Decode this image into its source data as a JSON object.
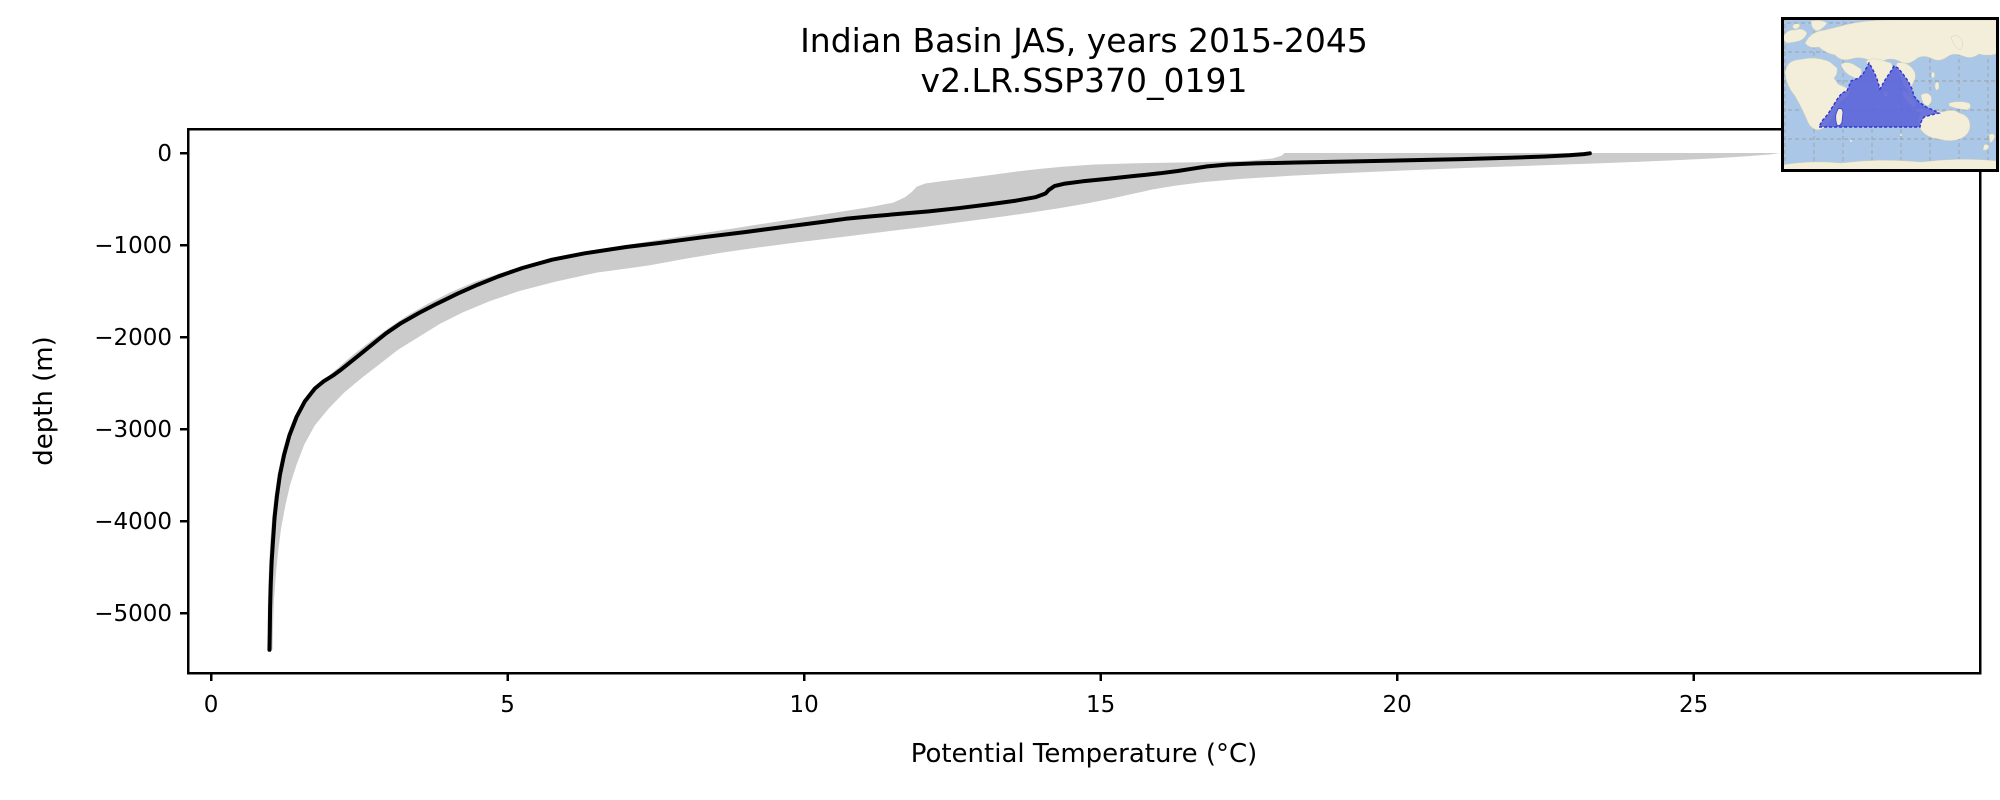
{
  "figure": {
    "title_line1": "Indian Basin JAS, years 2015-2045",
    "title_line2": "v2.LR.SSP370_0191",
    "background": "#ffffff"
  },
  "chart_data": {
    "type": "line",
    "title": "Indian Basin JAS, years 2015-2045",
    "subtitle": "v2.LR.SSP370_0191",
    "xlabel": "Potential Temperature (°C)",
    "ylabel": "depth (m)",
    "xlim": [
      -0.39,
      29.83
    ],
    "ylim": [
      -5652,
      261
    ],
    "grid": false,
    "legend": "none",
    "x_ticks": {
      "values": [
        0,
        5,
        10,
        15,
        20,
        25
      ],
      "labels": [
        "0",
        "5",
        "10",
        "15",
        "20",
        "25"
      ]
    },
    "y_ticks": {
      "values": [
        0,
        -1000,
        -2000,
        -3000,
        -4000,
        -5000
      ],
      "labels": [
        "0",
        "−1000",
        "−2000",
        "−3000",
        "−4000",
        "−5000"
      ]
    },
    "series": [
      {
        "name": "mean potential temperature profile",
        "color": "#000000",
        "points": [
          [
            23.25,
            -3
          ],
          [
            23.15,
            -12
          ],
          [
            22.9,
            -25
          ],
          [
            22.5,
            -38
          ],
          [
            21.9,
            -52
          ],
          [
            21.1,
            -66
          ],
          [
            20.2,
            -79
          ],
          [
            19.2,
            -92
          ],
          [
            18.3,
            -103
          ],
          [
            17.6,
            -113
          ],
          [
            17.15,
            -125
          ],
          [
            16.8,
            -145
          ],
          [
            16.55,
            -170
          ],
          [
            16.3,
            -195
          ],
          [
            16.0,
            -220
          ],
          [
            15.6,
            -248
          ],
          [
            15.15,
            -278
          ],
          [
            14.7,
            -308
          ],
          [
            14.4,
            -332
          ],
          [
            14.22,
            -360
          ],
          [
            14.13,
            -400
          ],
          [
            14.07,
            -440
          ],
          [
            13.9,
            -480
          ],
          [
            13.55,
            -520
          ],
          [
            13.1,
            -560
          ],
          [
            12.6,
            -600
          ],
          [
            12.1,
            -635
          ],
          [
            11.6,
            -662
          ],
          [
            11.15,
            -688
          ],
          [
            10.7,
            -715
          ],
          [
            10.35,
            -745
          ],
          [
            9.7,
            -800
          ],
          [
            9.0,
            -860
          ],
          [
            8.3,
            -915
          ],
          [
            7.6,
            -975
          ],
          [
            7.0,
            -1022
          ],
          [
            6.3,
            -1090
          ],
          [
            5.75,
            -1160
          ],
          [
            5.25,
            -1250
          ],
          [
            4.85,
            -1340
          ],
          [
            4.5,
            -1430
          ],
          [
            4.15,
            -1530
          ],
          [
            3.8,
            -1640
          ],
          [
            3.5,
            -1740
          ],
          [
            3.2,
            -1850
          ],
          [
            2.95,
            -1960
          ],
          [
            2.7,
            -2090
          ],
          [
            2.45,
            -2220
          ],
          [
            2.2,
            -2350
          ],
          [
            2.05,
            -2420
          ],
          [
            1.9,
            -2480
          ],
          [
            1.75,
            -2560
          ],
          [
            1.58,
            -2700
          ],
          [
            1.44,
            -2870
          ],
          [
            1.32,
            -3070
          ],
          [
            1.23,
            -3280
          ],
          [
            1.16,
            -3500
          ],
          [
            1.11,
            -3730
          ],
          [
            1.07,
            -3960
          ],
          [
            1.045,
            -4200
          ],
          [
            1.02,
            -4450
          ],
          [
            1.005,
            -4700
          ],
          [
            0.995,
            -4950
          ],
          [
            0.99,
            -5200
          ],
          [
            0.985,
            -5400
          ]
        ]
      }
    ],
    "band": {
      "name": "min-max envelope across ensemble",
      "color": "#cbcbcb",
      "min_points": [
        [
          18.1,
          0
        ],
        [
          18.05,
          -30
        ],
        [
          17.9,
          -60
        ],
        [
          17.5,
          -85
        ],
        [
          16.6,
          -100
        ],
        [
          15.6,
          -112
        ],
        [
          14.9,
          -125
        ],
        [
          14.35,
          -150
        ],
        [
          14.0,
          -170
        ],
        [
          13.6,
          -200
        ],
        [
          13.2,
          -235
        ],
        [
          12.8,
          -268
        ],
        [
          12.4,
          -300
        ],
        [
          12.05,
          -330
        ],
        [
          11.9,
          -365
        ],
        [
          11.82,
          -420
        ],
        [
          11.7,
          -480
        ],
        [
          11.5,
          -540
        ],
        [
          11.1,
          -590
        ],
        [
          10.6,
          -640
        ],
        [
          10.1,
          -690
        ],
        [
          9.5,
          -750
        ],
        [
          8.8,
          -820
        ],
        [
          8.1,
          -890
        ],
        [
          7.4,
          -960
        ],
        [
          6.7,
          -1030
        ],
        [
          6.0,
          -1110
        ],
        [
          5.4,
          -1200
        ],
        [
          4.9,
          -1300
        ],
        [
          4.45,
          -1400
        ],
        [
          4.05,
          -1510
        ],
        [
          3.65,
          -1640
        ],
        [
          3.3,
          -1770
        ],
        [
          3.0,
          -1900
        ],
        [
          2.7,
          -2040
        ],
        [
          2.4,
          -2190
        ],
        [
          2.15,
          -2330
        ],
        [
          1.95,
          -2440
        ],
        [
          1.75,
          -2550
        ],
        [
          1.55,
          -2700
        ],
        [
          1.4,
          -2870
        ],
        [
          1.28,
          -3070
        ],
        [
          1.19,
          -3280
        ],
        [
          1.12,
          -3500
        ],
        [
          1.07,
          -3730
        ],
        [
          1.03,
          -3960
        ],
        [
          1.0,
          -4200
        ],
        [
          0.98,
          -4450
        ],
        [
          0.965,
          -4700
        ],
        [
          0.955,
          -4950
        ],
        [
          0.95,
          -5200
        ],
        [
          0.945,
          -5400
        ]
      ],
      "max_points": [
        [
          26.45,
          0
        ],
        [
          26.3,
          -15
        ],
        [
          25.9,
          -35
        ],
        [
          25.3,
          -60
        ],
        [
          24.5,
          -85
        ],
        [
          23.5,
          -110
        ],
        [
          22.4,
          -135
        ],
        [
          21.2,
          -162
        ],
        [
          20.1,
          -190
        ],
        [
          19.1,
          -218
        ],
        [
          18.2,
          -248
        ],
        [
          17.4,
          -280
        ],
        [
          16.75,
          -315
        ],
        [
          16.25,
          -355
        ],
        [
          15.85,
          -400
        ],
        [
          15.5,
          -450
        ],
        [
          15.15,
          -500
        ],
        [
          14.75,
          -550
        ],
        [
          14.3,
          -600
        ],
        [
          13.8,
          -650
        ],
        [
          13.25,
          -700
        ],
        [
          12.65,
          -750
        ],
        [
          12.0,
          -805
        ],
        [
          11.3,
          -860
        ],
        [
          10.6,
          -915
        ],
        [
          9.9,
          -970
        ],
        [
          9.25,
          -1025
        ],
        [
          8.6,
          -1085
        ],
        [
          8.0,
          -1150
        ],
        [
          7.4,
          -1220
        ],
        [
          6.5,
          -1300
        ],
        [
          5.8,
          -1400
        ],
        [
          5.2,
          -1500
        ],
        [
          4.7,
          -1610
        ],
        [
          4.25,
          -1730
        ],
        [
          3.85,
          -1860
        ],
        [
          3.5,
          -2000
        ],
        [
          3.15,
          -2140
        ],
        [
          2.85,
          -2290
        ],
        [
          2.55,
          -2440
        ],
        [
          2.25,
          -2600
        ],
        [
          1.98,
          -2780
        ],
        [
          1.75,
          -2960
        ],
        [
          1.57,
          -3170
        ],
        [
          1.44,
          -3390
        ],
        [
          1.33,
          -3610
        ],
        [
          1.25,
          -3840
        ],
        [
          1.18,
          -4080
        ],
        [
          1.13,
          -4330
        ],
        [
          1.09,
          -4590
        ],
        [
          1.06,
          -4860
        ],
        [
          1.045,
          -5130
        ],
        [
          1.035,
          -5400
        ]
      ]
    },
    "inset_map": {
      "depicts": "world map inset with the Indian Ocean basin region highlighted",
      "ocean_color": "#aac7e7",
      "land_color": "#f3eeda",
      "region_fill": "#5a63da",
      "region_border": "#2e36c9",
      "grid_color": "#9a9a9a",
      "border_color": "#000000"
    }
  }
}
